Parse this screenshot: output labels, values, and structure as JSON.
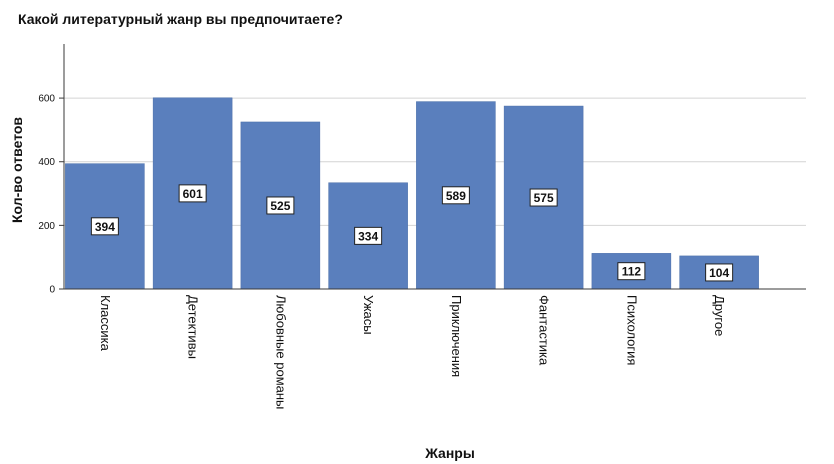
{
  "chart_data": {
    "type": "bar",
    "title": "Какой литературный жанр вы предпочитаете?",
    "xlabel": "Жанры",
    "ylabel": "Кол-во ответов",
    "categories": [
      "Классика",
      "Детективы",
      "Любовные романы",
      "Ужасы",
      "Приключения",
      "Фантастика",
      "Психология",
      "Другое"
    ],
    "values": [
      394,
      601,
      525,
      334,
      589,
      575,
      112,
      104
    ],
    "data_labels": [
      "394",
      "601",
      "525",
      "334",
      "589",
      "575",
      "112",
      "104"
    ],
    "ylim": [
      0,
      770
    ],
    "yticks": [
      0,
      200,
      400,
      600
    ],
    "ytick_labels": [
      "0",
      "200",
      "400",
      "600"
    ],
    "grid": true,
    "colors": {
      "bar": "#5a7fbd",
      "bar_edge": "#4a6ea8",
      "grid": "#d4d4d4",
      "axis": "#3a3a3a",
      "text": "#111111"
    }
  }
}
